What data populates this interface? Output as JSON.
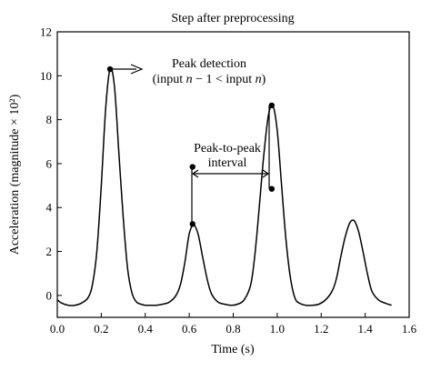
{
  "chart_data": {
    "type": "line",
    "title": "Step after preprocessing",
    "xlabel": "Time (s)",
    "ylabel": "Acceleration (magnitude × 10²)",
    "xlim": [
      0.0,
      1.6
    ],
    "ylim": [
      -1,
      12
    ],
    "x_ticks": [
      0.0,
      0.2,
      0.4,
      0.6,
      0.8,
      1.0,
      1.2,
      1.4,
      1.6
    ],
    "x_tick_labels": [
      "0.0",
      "0.2",
      "0.4",
      "0.6",
      "0.8",
      "1.0",
      "1.2",
      "1.4",
      "1.6"
    ],
    "y_ticks": [
      0,
      2,
      4,
      6,
      8,
      10,
      12
    ],
    "y_tick_labels": [
      "0",
      "2",
      "4",
      "6",
      "8",
      "10",
      "12"
    ],
    "grid": false,
    "series": [
      {
        "x": [
          0.0,
          0.02,
          0.05,
          0.08,
          0.11,
          0.14,
          0.16,
          0.18,
          0.2,
          0.22,
          0.24,
          0.26,
          0.28,
          0.3,
          0.32,
          0.34,
          0.36,
          0.38,
          0.4,
          0.42,
          0.45,
          0.48,
          0.51,
          0.54,
          0.56,
          0.58,
          0.6,
          0.62,
          0.64,
          0.66,
          0.68,
          0.7,
          0.73,
          0.76,
          0.79,
          0.82,
          0.85,
          0.88,
          0.9,
          0.92,
          0.94,
          0.96,
          0.98,
          1.0,
          1.02,
          1.04,
          1.06,
          1.08,
          1.1,
          1.13,
          1.16,
          1.19,
          1.22,
          1.25,
          1.27,
          1.29,
          1.31,
          1.33,
          1.35,
          1.37,
          1.39,
          1.41,
          1.43,
          1.46,
          1.49,
          1.52
        ],
        "y": [
          -0.2,
          -0.35,
          -0.45,
          -0.45,
          -0.35,
          -0.1,
          0.5,
          2.0,
          5.0,
          8.5,
          10.3,
          9.5,
          6.5,
          3.5,
          1.2,
          0.1,
          -0.3,
          -0.4,
          -0.45,
          -0.45,
          -0.45,
          -0.4,
          -0.3,
          0.0,
          0.5,
          1.5,
          2.8,
          3.2,
          2.8,
          1.8,
          0.8,
          0.1,
          -0.3,
          -0.4,
          -0.45,
          -0.4,
          -0.2,
          0.5,
          2.0,
          4.2,
          6.5,
          8.2,
          8.65,
          7.5,
          5.0,
          2.5,
          0.8,
          -0.1,
          -0.35,
          -0.45,
          -0.45,
          -0.4,
          -0.2,
          0.2,
          0.8,
          1.8,
          2.7,
          3.3,
          3.4,
          2.9,
          2.0,
          1.0,
          0.2,
          -0.2,
          -0.35,
          -0.45
        ]
      }
    ],
    "markers": [
      {
        "x": 0.24,
        "y": 10.3
      },
      {
        "x": 0.615,
        "y": 5.85
      },
      {
        "x": 0.615,
        "y": 3.25
      },
      {
        "x": 0.975,
        "y": 8.65
      },
      {
        "x": 0.975,
        "y": 4.85
      }
    ],
    "annotations": {
      "peak_detection_line1": "Peak detection",
      "peak_detection_line2_prefix": "(input ",
      "peak_detection_line2_n1": "n",
      "peak_detection_line2_mid": " − 1 < input ",
      "peak_detection_line2_n2": "n",
      "peak_detection_line2_suffix": ")",
      "peak_to_peak_line1": "Peak-to-peak",
      "peak_to_peak_line2": "interval"
    }
  }
}
